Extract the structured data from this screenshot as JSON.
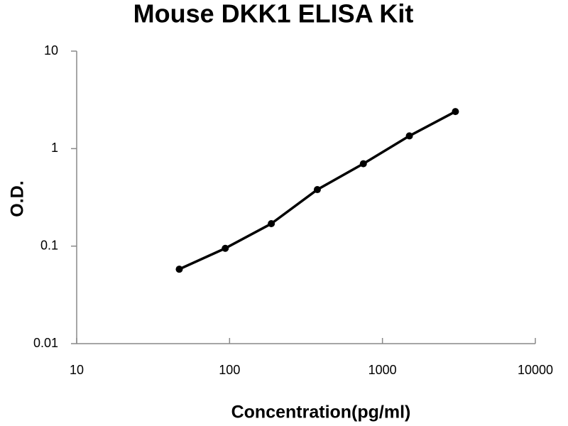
{
  "chart_data": {
    "type": "scatter",
    "title": "Mouse DKK1 ELISA Kit",
    "x_label": "Concentration(pg/ml)",
    "y_label": "O.D.",
    "x": [
      46.875,
      93.75,
      187.5,
      375,
      750,
      1500,
      3000
    ],
    "values": [
      0.058,
      0.095,
      0.17,
      0.38,
      0.7,
      1.35,
      2.4
    ],
    "color": "#000000",
    "xscale": "log",
    "yscale": "log",
    "xlim": [
      10,
      10000
    ],
    "ylim": [
      0.01,
      10
    ],
    "xticks": [
      10,
      100,
      1000,
      10000
    ],
    "yticks": [
      0.01,
      0.1,
      1,
      10
    ],
    "grid": false
  }
}
